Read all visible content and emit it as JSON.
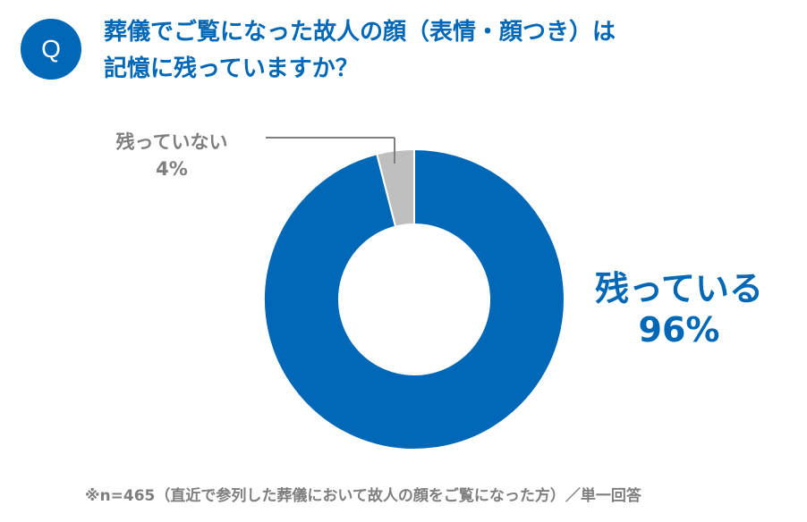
{
  "badge": {
    "text": "Q"
  },
  "title": {
    "line1": "葬儀でご覧になった故人の顔（表情・顔つき）は",
    "line2": "記憶に残っていますか？"
  },
  "chart_data": {
    "type": "pie",
    "variant": "donut",
    "title": "",
    "series": [
      {
        "label": "残っている",
        "value": 96,
        "value_label": "96%",
        "color": "#0068b7"
      },
      {
        "label": "残っていない",
        "value": 4,
        "value_label": "4%",
        "color": "#bfbfbf"
      }
    ],
    "start_angle": "12 o'clock",
    "direction": "clockwise"
  },
  "footnote": "※n=465（直近で参列した葬儀において故人の顔をご覧になった方）／単一回答"
}
